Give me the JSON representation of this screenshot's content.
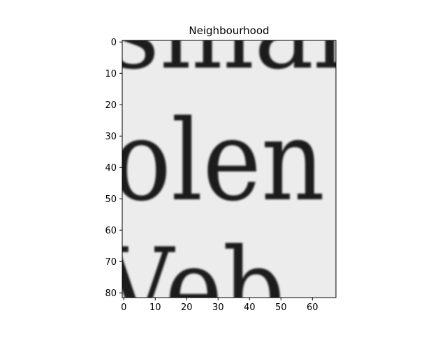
{
  "figure": {
    "title": "Neighbourhood"
  },
  "chart_data": {
    "type": "heatmap",
    "colormap": "grayscale",
    "title": "Neighbourhood",
    "image_content_text": [
      "smal",
      "olen",
      "Veb"
    ],
    "image_size": {
      "columns": 68,
      "rows": 82
    },
    "xlim": [
      -0.5,
      67.5
    ],
    "ylim": [
      81.5,
      -0.5
    ],
    "y_axis_inverted": true,
    "x_ticks": [
      0,
      10,
      20,
      30,
      40,
      50,
      60
    ],
    "y_ticks": [
      0,
      10,
      20,
      30,
      40,
      50,
      60,
      70,
      80
    ],
    "x_tick_labels": [
      "0",
      "10",
      "20",
      "30",
      "40",
      "50",
      "60"
    ],
    "y_tick_labels": [
      "0",
      "10",
      "20",
      "30",
      "40",
      "50",
      "60",
      "70",
      "80"
    ],
    "grid": false
  },
  "colors": {
    "background": "#ececec",
    "ink": "#1f1f1f",
    "axes": "#000000"
  }
}
